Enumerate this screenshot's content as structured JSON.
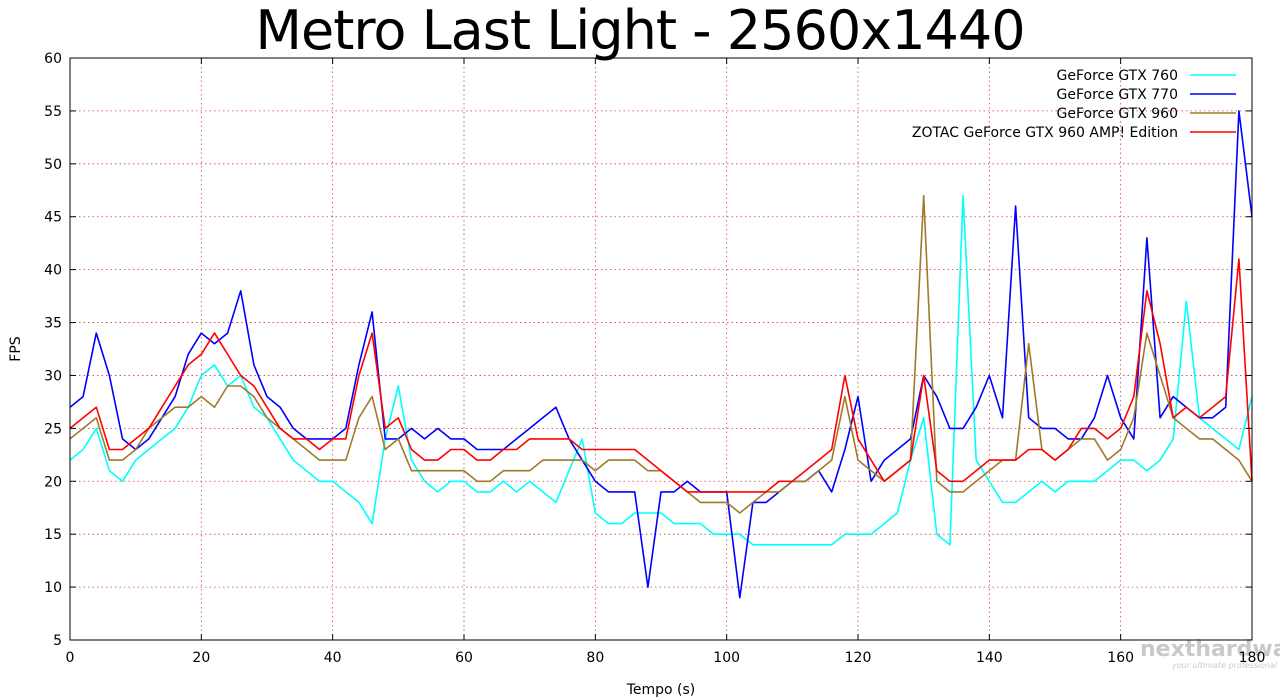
{
  "chart_data": {
    "type": "line",
    "title": "Metro Last Light - 2560x1440",
    "xlabel": "Tempo (s)",
    "ylabel": "FPS",
    "xlim": [
      0,
      180
    ],
    "ylim": [
      5,
      60
    ],
    "xticks": [
      0,
      20,
      40,
      60,
      80,
      100,
      120,
      140,
      160,
      180
    ],
    "yticks": [
      5,
      10,
      15,
      20,
      25,
      30,
      35,
      40,
      45,
      50,
      55,
      60
    ],
    "grid": true,
    "legend_position": "top-right",
    "x": [
      0,
      2,
      4,
      6,
      8,
      10,
      12,
      14,
      16,
      18,
      20,
      22,
      24,
      26,
      28,
      30,
      32,
      34,
      36,
      38,
      40,
      42,
      44,
      46,
      48,
      50,
      52,
      54,
      56,
      58,
      60,
      62,
      64,
      66,
      68,
      70,
      72,
      74,
      76,
      78,
      80,
      82,
      84,
      86,
      88,
      90,
      92,
      94,
      96,
      98,
      100,
      102,
      104,
      106,
      108,
      110,
      112,
      114,
      116,
      118,
      120,
      122,
      124,
      126,
      128,
      130,
      132,
      134,
      136,
      138,
      140,
      142,
      144,
      146,
      148,
      150,
      152,
      154,
      156,
      158,
      160,
      162,
      164,
      166,
      168,
      170,
      172,
      174,
      176,
      178,
      180
    ],
    "series": [
      {
        "name": "GeForce GTX 760",
        "color": "#00ffff",
        "values": [
          22,
          23,
          25,
          21,
          20,
          22,
          23,
          24,
          25,
          27,
          30,
          31,
          29,
          30,
          27,
          26,
          24,
          22,
          21,
          20,
          20,
          19,
          18,
          16,
          24,
          29,
          22,
          20,
          19,
          20,
          20,
          19,
          19,
          20,
          19,
          20,
          19,
          18,
          21,
          24,
          17,
          16,
          16,
          17,
          17,
          17,
          16,
          16,
          16,
          15,
          15,
          15,
          14,
          14,
          14,
          14,
          14,
          14,
          14,
          15,
          15,
          15,
          16,
          17,
          22,
          26,
          15,
          14,
          47,
          22,
          20,
          18,
          18,
          19,
          20,
          19,
          20,
          20,
          20,
          21,
          22,
          22,
          21,
          22,
          24,
          37,
          26,
          25,
          24,
          23,
          28
        ]
      },
      {
        "name": "GeForce GTX 770",
        "color": "#0000ff",
        "values": [
          27,
          28,
          34,
          30,
          24,
          23,
          24,
          26,
          28,
          32,
          34,
          33,
          34,
          38,
          31,
          28,
          27,
          25,
          24,
          24,
          24,
          25,
          31,
          36,
          24,
          24,
          25,
          24,
          25,
          24,
          24,
          23,
          23,
          23,
          24,
          25,
          26,
          27,
          24,
          22,
          20,
          19,
          19,
          19,
          10,
          19,
          19,
          20,
          19,
          19,
          19,
          9,
          18,
          18,
          19,
          20,
          20,
          21,
          19,
          23,
          28,
          20,
          22,
          23,
          24,
          30,
          28,
          25,
          25,
          27,
          30,
          26,
          46,
          26,
          25,
          25,
          24,
          24,
          26,
          30,
          26,
          24,
          43,
          26,
          28,
          27,
          26,
          26,
          27,
          55,
          45
        ]
      },
      {
        "name": "GeForce GTX 960",
        "color": "#a07a2a",
        "values": [
          24,
          25,
          26,
          22,
          22,
          23,
          25,
          26,
          27,
          27,
          28,
          27,
          29,
          29,
          28,
          26,
          25,
          24,
          23,
          22,
          22,
          22,
          26,
          28,
          23,
          24,
          21,
          21,
          21,
          21,
          21,
          20,
          20,
          21,
          21,
          21,
          22,
          22,
          22,
          22,
          21,
          22,
          22,
          22,
          21,
          21,
          20,
          19,
          18,
          18,
          18,
          17,
          18,
          19,
          19,
          20,
          20,
          21,
          22,
          28,
          22,
          21,
          20,
          21,
          22,
          47,
          20,
          19,
          19,
          20,
          21,
          22,
          22,
          33,
          23,
          22,
          23,
          24,
          24,
          22,
          23,
          26,
          34,
          30,
          26,
          25,
          24,
          24,
          23,
          22,
          20
        ]
      },
      {
        "name": "ZOTAC GeForce GTX 960 AMP! Edition",
        "color": "#ff0000",
        "values": [
          25,
          26,
          27,
          23,
          23,
          24,
          25,
          27,
          29,
          31,
          32,
          34,
          32,
          30,
          29,
          27,
          25,
          24,
          24,
          23,
          24,
          24,
          30,
          34,
          25,
          26,
          23,
          22,
          22,
          23,
          23,
          22,
          22,
          23,
          23,
          24,
          24,
          24,
          24,
          23,
          23,
          23,
          23,
          23,
          22,
          21,
          20,
          19,
          19,
          19,
          19,
          19,
          19,
          19,
          20,
          20,
          21,
          22,
          23,
          30,
          24,
          22,
          20,
          21,
          22,
          30,
          21,
          20,
          20,
          21,
          22,
          22,
          22,
          23,
          23,
          22,
          23,
          25,
          25,
          24,
          25,
          28,
          38,
          33,
          26,
          27,
          26,
          27,
          28,
          41,
          20
        ]
      }
    ]
  },
  "watermark": {
    "text": "nexthardware.com",
    "subtext": "your ultimate professional resource"
  }
}
